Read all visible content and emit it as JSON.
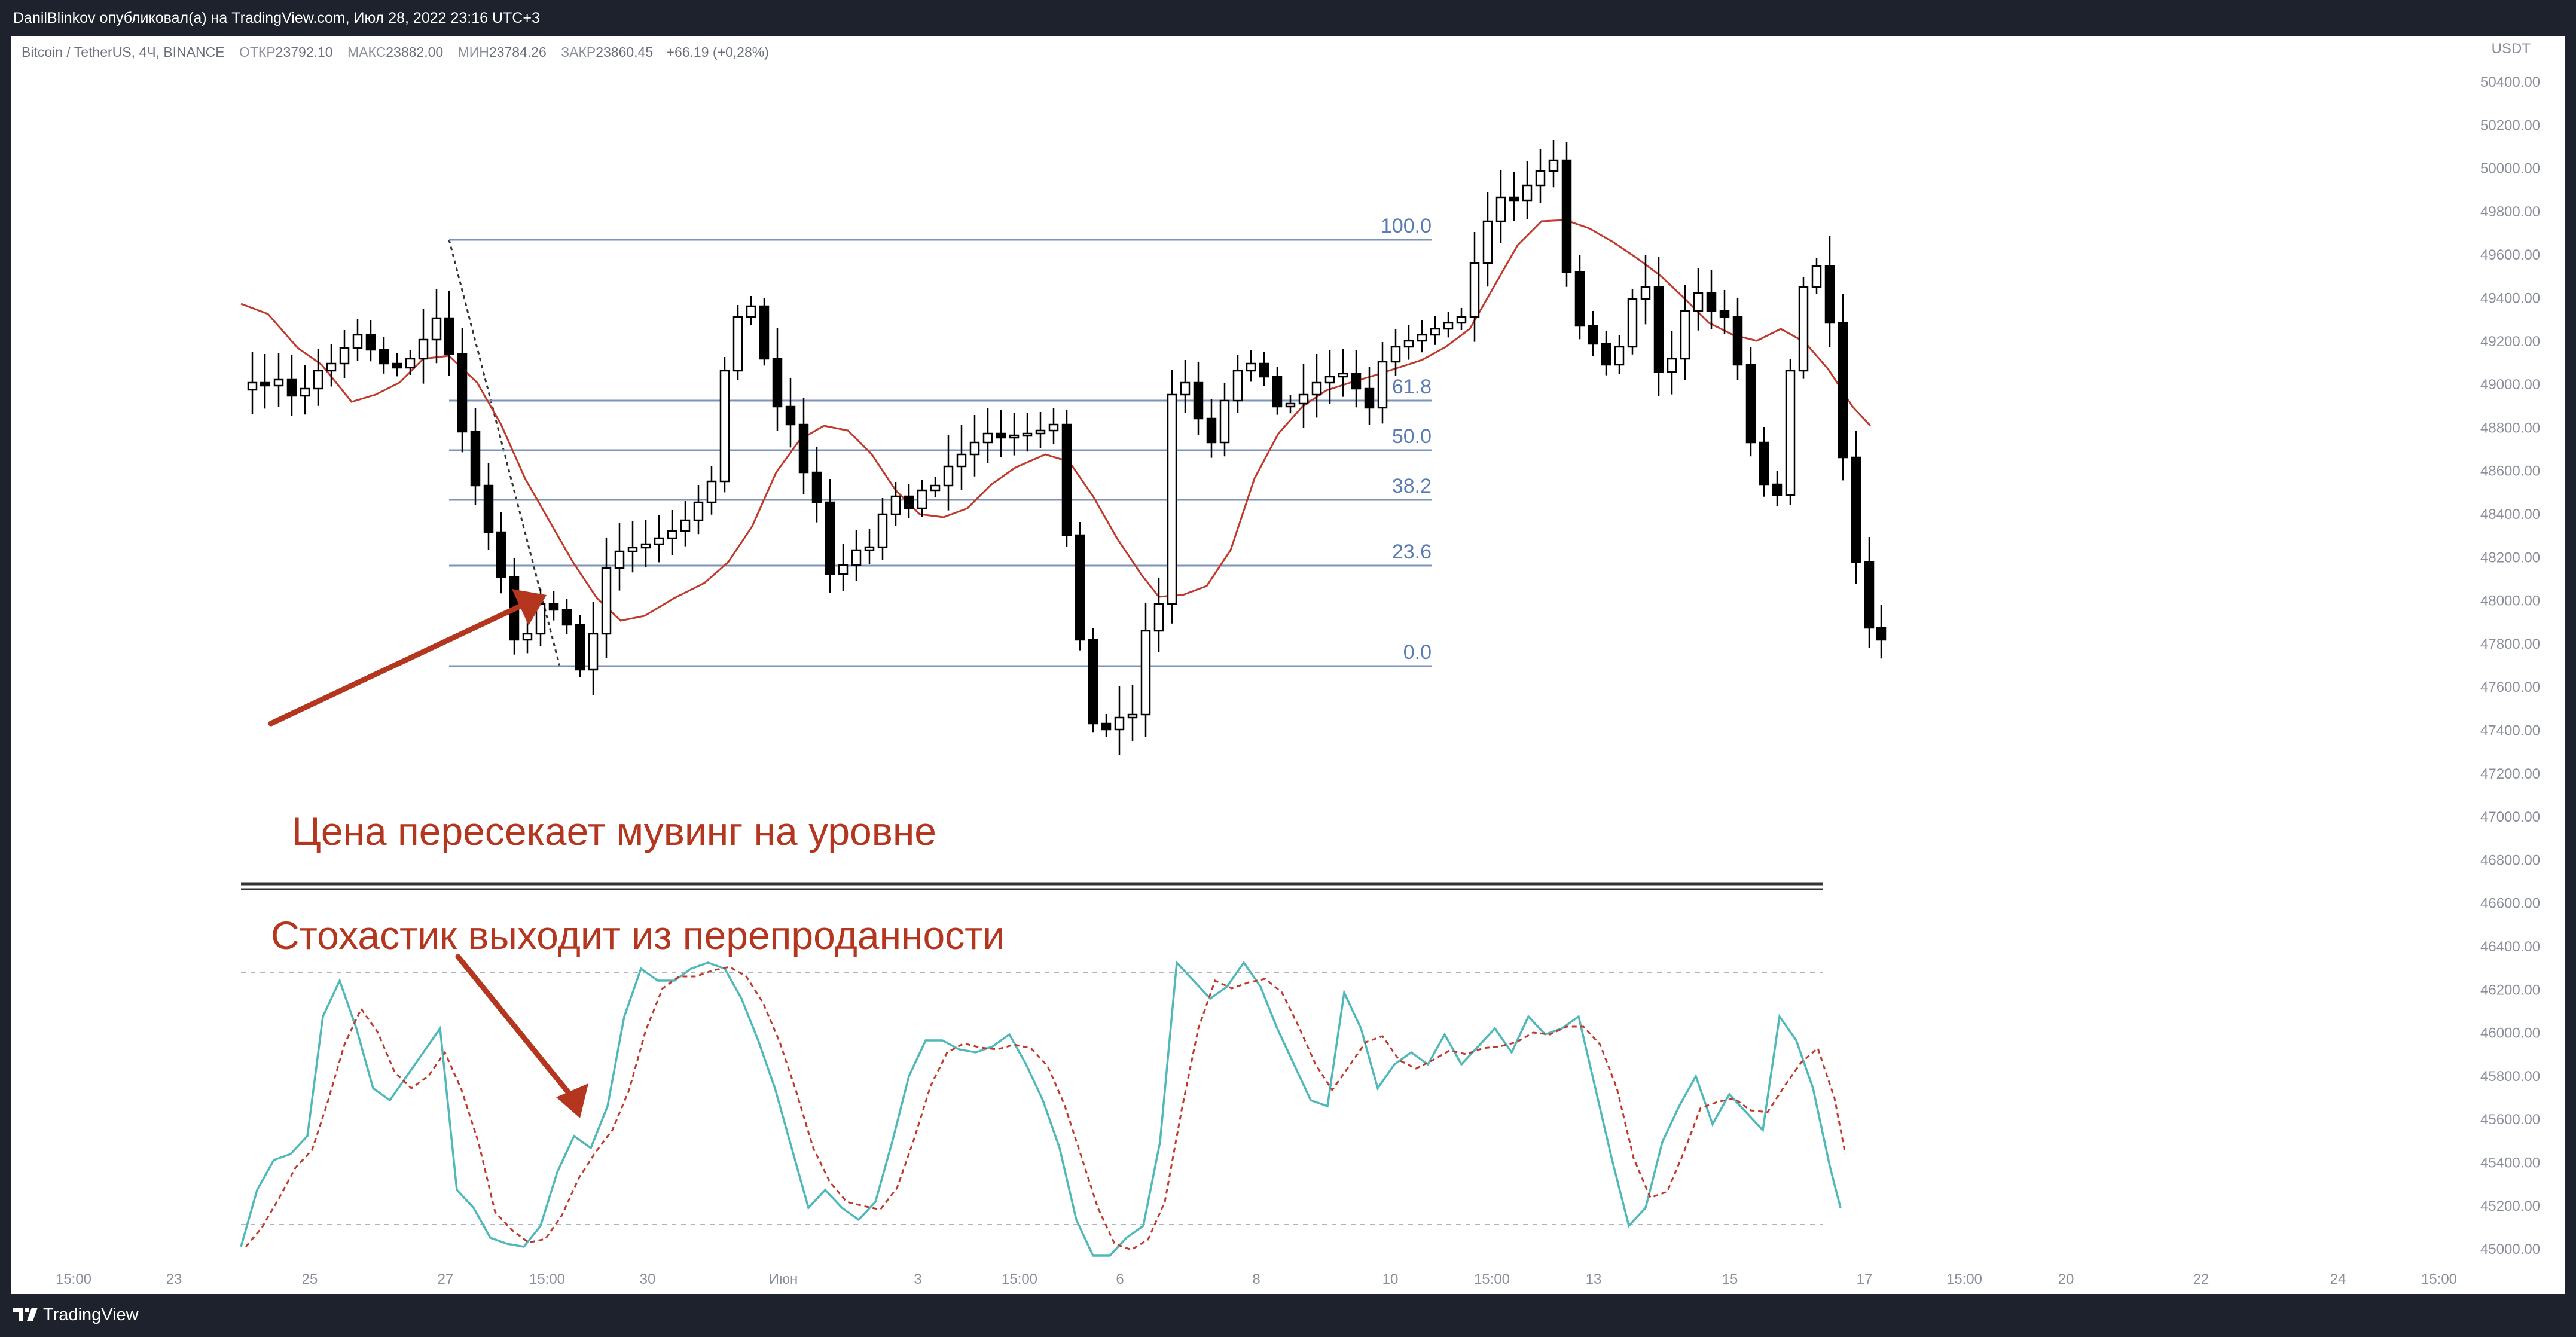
{
  "header": {
    "published_by": "DanilBlinkov опубликовал(а) на TradingView.com, Июл 28, 2022 23:16 UTC+3"
  },
  "symbol": {
    "name": "Bitcoin / TetherUS, 4Ч, BINANCE",
    "open_label": "ОТКР",
    "open_value": "23792.10",
    "high_label": "МАКС",
    "high_value": "23882.00",
    "low_label": "МИН",
    "low_value": "23784.26",
    "close_label": "ЗАКР",
    "close_value": "23860.45",
    "change": "+66.19 (+0,28%)"
  },
  "price_axis": {
    "currency": "USDT",
    "labels": [
      "50400.00",
      "50200.00",
      "50000.00",
      "49800.00",
      "49600.00",
      "49400.00",
      "49200.00",
      "49000.00",
      "48800.00",
      "48600.00",
      "48400.00",
      "48200.00",
      "48000.00",
      "47800.00",
      "47600.00",
      "47400.00",
      "47200.00",
      "47000.00",
      "46800.00",
      "46600.00",
      "46400.00",
      "46200.00",
      "46000.00",
      "45800.00",
      "45600.00",
      "45400.00",
      "45200.00",
      "45000.00"
    ]
  },
  "time_axis": {
    "labels": [
      "15:00",
      "23",
      "25",
      "27",
      "15:00",
      "30",
      "Июн",
      "3",
      "15:00",
      "6",
      "8",
      "10",
      "15:00",
      "13",
      "15",
      "17",
      "15:00",
      "20",
      "22",
      "24",
      "15:00"
    ]
  },
  "fibonacci": {
    "levels": [
      "100.0",
      "61.8",
      "50.0",
      "38.2",
      "23.6",
      "0.0"
    ]
  },
  "annotations": {
    "price_text": "Цена пересекает мувинг на уровне",
    "stoch_text": "Стохастик выходит из перепроданности"
  },
  "colors": {
    "background": "#ffffff",
    "frame": "#1e222d",
    "moving_average": "#c0392b",
    "fib_line": "#7e93b8",
    "fib_label": "#5b7bb5",
    "annotation": "#b5361f",
    "stoch_k": "#4fb8b8",
    "stoch_d": "#c0392b",
    "candle_up": "#ffffff",
    "candle_down": "#000000"
  },
  "footer": {
    "brand": "TradingView",
    "logo_icon": "tradingview-logo-icon"
  }
}
